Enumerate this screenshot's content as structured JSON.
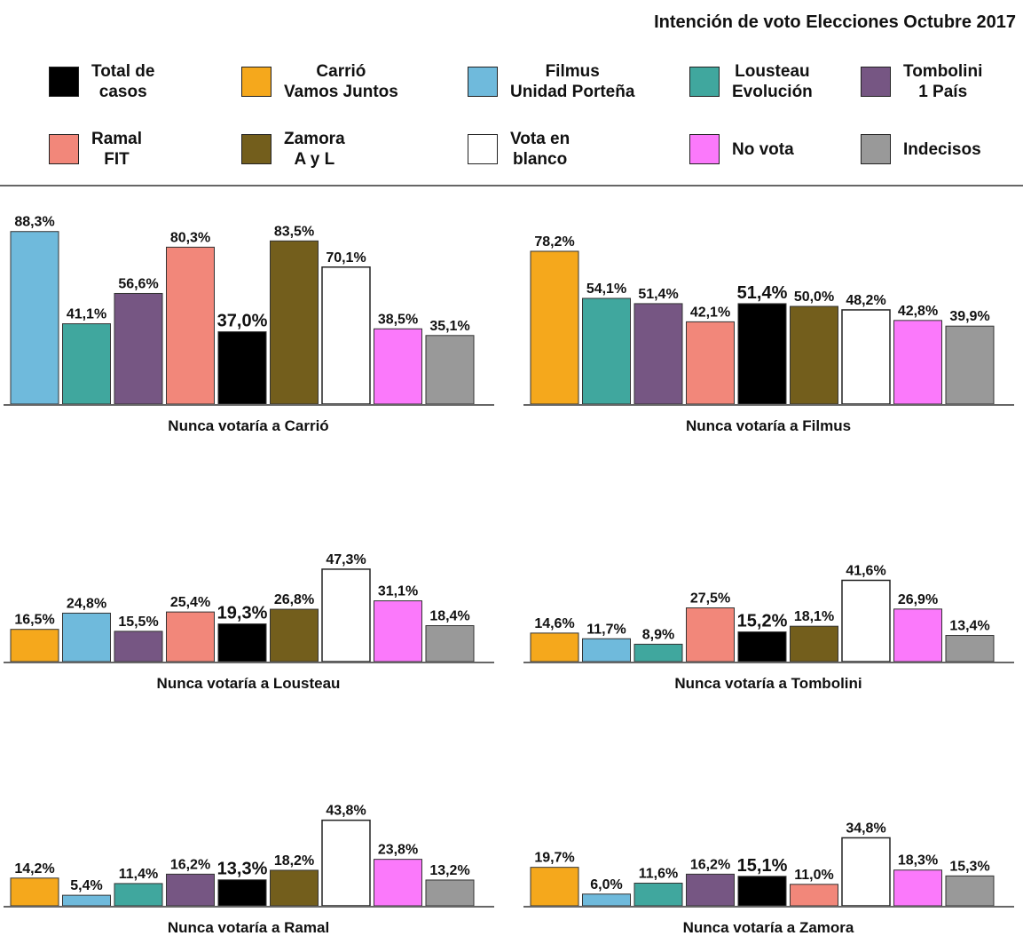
{
  "title": "Intención de voto Elecciones Octubre 2017",
  "legend": [
    {
      "key": "total",
      "label": "Total de\ncasos",
      "color": "#000000"
    },
    {
      "key": "carrio",
      "label": "Carrió\nVamos Juntos",
      "color": "#F5A81C"
    },
    {
      "key": "filmus",
      "label": "Filmus\nUnidad Porteña",
      "color": "#6FBADC"
    },
    {
      "key": "lousteau",
      "label": "Lousteau\nEvolución",
      "color": "#40A79E"
    },
    {
      "key": "tombolini",
      "label": "Tombolini\n1 País",
      "color": "#765683"
    },
    {
      "key": "ramal",
      "label": "Ramal\nFIT",
      "color": "#F2877A"
    },
    {
      "key": "zamora",
      "label": "Zamora\nA y L",
      "color": "#735E1C"
    },
    {
      "key": "blanco",
      "label": "Vota en\nblanco",
      "color": "#FFFFFF"
    },
    {
      "key": "novota",
      "label": "No vota",
      "color": "#FB79FB"
    },
    {
      "key": "indecisos",
      "label": "Indecisos",
      "color": "#999999"
    }
  ],
  "chart_data": [
    {
      "type": "bar",
      "title": "Nunca votaría a Carrió",
      "categories": [
        "filmus",
        "lousteau",
        "tombolini",
        "ramal",
        "total",
        "zamora",
        "blanco",
        "novota",
        "indecisos"
      ],
      "values": [
        88.3,
        41.1,
        56.6,
        80.3,
        37.0,
        83.5,
        70.1,
        38.5,
        35.1
      ],
      "labels": [
        "88,3%",
        "41,1%",
        "56,6%",
        "80,3%",
        "37,0%",
        "83,5%",
        "70,1%",
        "38,5%",
        "35,1%"
      ]
    },
    {
      "type": "bar",
      "title": "Nunca votaría a Filmus",
      "categories": [
        "carrio",
        "lousteau",
        "tombolini",
        "ramal",
        "total",
        "zamora",
        "blanco",
        "novota",
        "indecisos"
      ],
      "values": [
        78.2,
        54.1,
        51.4,
        42.1,
        51.4,
        50.0,
        48.2,
        42.8,
        39.9
      ],
      "labels": [
        "78,2%",
        "54,1%",
        "51,4%",
        "42,1%",
        "51,4%",
        "50,0%",
        "48,2%",
        "42,8%",
        "39,9%"
      ]
    },
    {
      "type": "bar",
      "title": "Nunca votaría a Lousteau",
      "categories": [
        "carrio",
        "filmus",
        "tombolini",
        "ramal",
        "total",
        "zamora",
        "blanco",
        "novota",
        "indecisos"
      ],
      "values": [
        16.5,
        24.8,
        15.5,
        25.4,
        19.3,
        26.8,
        47.3,
        31.1,
        18.4
      ],
      "labels": [
        "16,5%",
        "24,8%",
        "15,5%",
        "25,4%",
        "19,3%",
        "26,8%",
        "47,3%",
        "31,1%",
        "18,4%"
      ]
    },
    {
      "type": "bar",
      "title": "Nunca votaría a Tombolini",
      "categories": [
        "carrio",
        "filmus",
        "lousteau",
        "ramal",
        "total",
        "zamora",
        "blanco",
        "novota",
        "indecisos"
      ],
      "values": [
        14.6,
        11.7,
        8.9,
        27.5,
        15.2,
        18.1,
        41.6,
        26.9,
        13.4
      ],
      "labels": [
        "14,6%",
        "11,7%",
        "8,9%",
        "27,5%",
        "15,2%",
        "18,1%",
        "41,6%",
        "26,9%",
        "13,4%"
      ]
    },
    {
      "type": "bar",
      "title": "Nunca votaría a Ramal",
      "categories": [
        "carrio",
        "filmus",
        "lousteau",
        "tombolini",
        "total",
        "zamora",
        "blanco",
        "novota",
        "indecisos"
      ],
      "values": [
        14.2,
        5.4,
        11.4,
        16.2,
        13.3,
        18.2,
        43.8,
        23.8,
        13.2
      ],
      "labels": [
        "14,2%",
        "5,4%",
        "11,4%",
        "16,2%",
        "13,3%",
        "18,2%",
        "43,8%",
        "23,8%",
        "13,2%"
      ]
    },
    {
      "type": "bar",
      "title": "Nunca votaría a Zamora",
      "categories": [
        "carrio",
        "filmus",
        "lousteau",
        "tombolini",
        "total",
        "ramal",
        "blanco",
        "novota",
        "indecisos"
      ],
      "values": [
        19.7,
        6.0,
        11.6,
        16.2,
        15.1,
        11.0,
        34.8,
        18.3,
        15.3
      ],
      "labels": [
        "19,7%",
        "6,0%",
        "11,6%",
        "16,2%",
        "15,1%",
        "11,0%",
        "34,8%",
        "18,3%",
        "15,3%"
      ]
    }
  ]
}
